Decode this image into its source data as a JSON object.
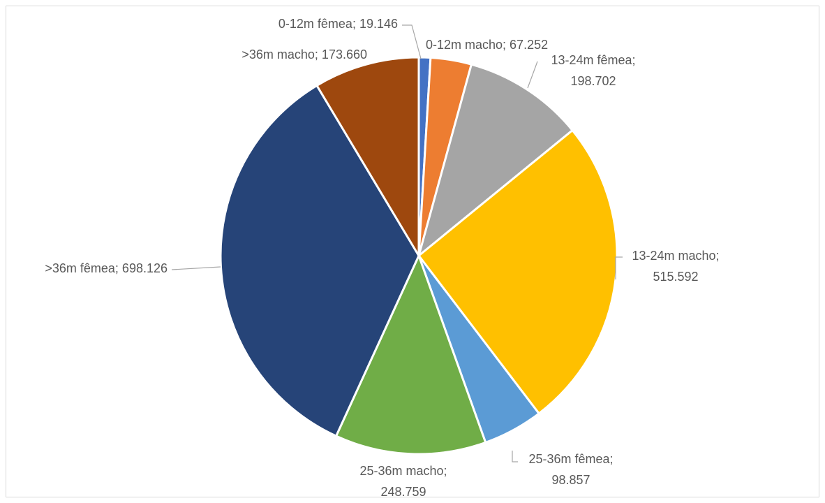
{
  "chart_data": {
    "type": "pie",
    "title": "",
    "series": [
      {
        "values": [
          19146,
          67252,
          198702,
          515592,
          98857,
          248759,
          698126,
          173660
        ]
      }
    ],
    "slices": [
      {
        "label": "0-12m fêmea",
        "value": 19146,
        "text": [
          "0-12m fêmea; 19.146"
        ],
        "color": "#4472c4"
      },
      {
        "label": "0-12m macho",
        "value": 67252,
        "text": [
          "0-12m macho; 67.252"
        ],
        "color": "#ed7d31"
      },
      {
        "label": "13-24m fêmea",
        "value": 198702,
        "text": [
          "13-24m fêmea;",
          "198.702"
        ],
        "color": "#a5a5a5"
      },
      {
        "label": "13-24m macho",
        "value": 515592,
        "text": [
          "13-24m macho;",
          "515.592"
        ],
        "color": "#ffc000"
      },
      {
        "label": "25-36m fêmea",
        "value": 98857,
        "text": [
          "25-36m fêmea;",
          "98.857"
        ],
        "color": "#5b9bd5"
      },
      {
        "label": "25-36m macho",
        "value": 248759,
        "text": [
          "25-36m macho;",
          "248.759"
        ],
        "color": "#70ad47"
      },
      {
        "label": ">36m fêmea",
        "value": 698126,
        "text": [
          ">36m fêmea; 698.126"
        ],
        "color": "#264478"
      },
      {
        "label": ">36m macho",
        "value": 173660,
        "text": [
          ">36m macho; 173.660"
        ],
        "color": "#9e480e"
      }
    ],
    "start_angle_deg": 0,
    "direction": "clockwise",
    "legend": "none",
    "data_labels": "outside with leader lines"
  }
}
